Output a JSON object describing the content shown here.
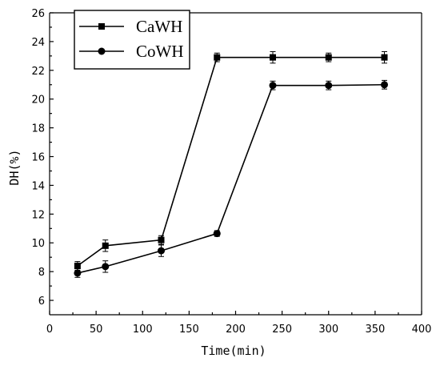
{
  "chart_data": {
    "type": "line",
    "xlabel": "Time(min)",
    "ylabel": "DH(%)",
    "xlim": [
      0,
      400
    ],
    "ylim": [
      5,
      26
    ],
    "x_ticks": [
      0,
      50,
      100,
      150,
      200,
      250,
      300,
      350,
      400
    ],
    "y_ticks": [
      6,
      8,
      10,
      12,
      14,
      16,
      18,
      20,
      22,
      24,
      26
    ],
    "grid": false,
    "legend_position": "top-left",
    "x": [
      30,
      60,
      120,
      180,
      240,
      300,
      360
    ],
    "series": [
      {
        "name": "CaWH",
        "marker": "square",
        "color": "#000000",
        "values": [
          8.4,
          9.8,
          10.2,
          22.9,
          22.9,
          22.9,
          22.9
        ],
        "error": [
          0.3,
          0.4,
          0.3,
          0.3,
          0.4,
          0.3,
          0.4
        ]
      },
      {
        "name": "CoWH",
        "marker": "circle",
        "color": "#000000",
        "values": [
          7.9,
          8.35,
          9.45,
          10.65,
          20.95,
          20.95,
          21.0
        ],
        "error": [
          0.3,
          0.4,
          0.4,
          0.2,
          0.3,
          0.3,
          0.3
        ]
      }
    ]
  }
}
